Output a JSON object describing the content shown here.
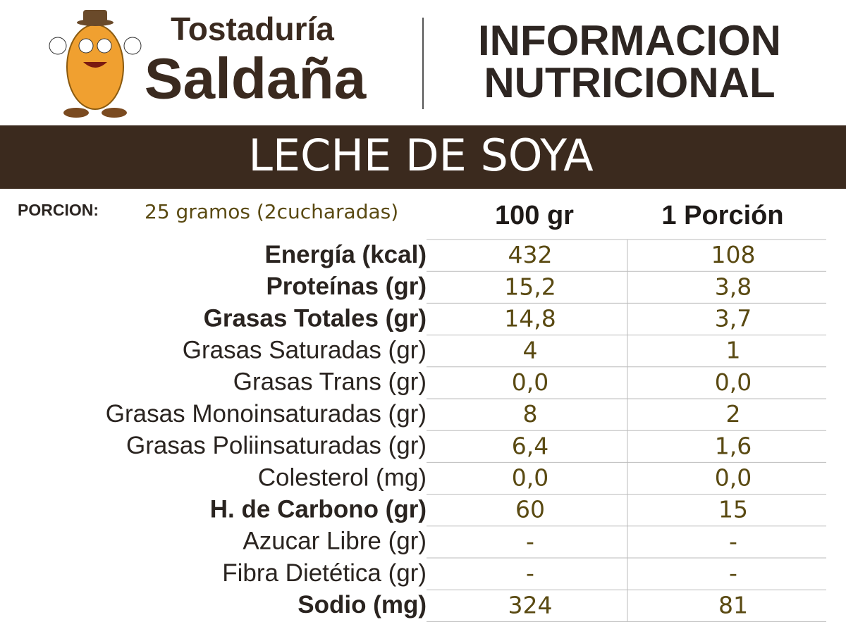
{
  "brand": {
    "line1": "Tostaduría",
    "line2": "Saldaña"
  },
  "header": {
    "title_line1": "INFORMACION",
    "title_line2": "NUTRICIONAL"
  },
  "product": "LECHE DE SOYA",
  "portion": {
    "label": "PORCION:",
    "value": "25 gramos (2cucharadas)"
  },
  "table": {
    "columns": [
      "100 gr",
      "1 Porción"
    ],
    "rows": [
      {
        "label": "Energía (kcal)",
        "per100": "432",
        "perPortion": "108",
        "bold": true
      },
      {
        "label": "Proteínas (gr)",
        "per100": "15,2",
        "perPortion": "3,8",
        "bold": true
      },
      {
        "label": "Grasas Totales (gr)",
        "per100": "14,8",
        "perPortion": "3,7",
        "bold": true
      },
      {
        "label": "Grasas Saturadas (gr)",
        "per100": "4",
        "perPortion": "1",
        "bold": false
      },
      {
        "label": "Grasas Trans (gr)",
        "per100": "0,0",
        "perPortion": "0,0",
        "bold": false
      },
      {
        "label": "Grasas Monoinsaturadas (gr)",
        "per100": "8",
        "perPortion": "2",
        "bold": false
      },
      {
        "label": "Grasas Poliinsaturadas (gr)",
        "per100": "6,4",
        "perPortion": "1,6",
        "bold": false
      },
      {
        "label": "Colesterol (mg)",
        "per100": "0,0",
        "perPortion": "0,0",
        "bold": false
      },
      {
        "label": "H. de Carbono (gr)",
        "per100": "60",
        "perPortion": "15",
        "bold": true
      },
      {
        "label": "Azucar Libre (gr)",
        "per100": "-",
        "perPortion": "-",
        "bold": false
      },
      {
        "label": "Fibra Dietética (gr)",
        "per100": "-",
        "perPortion": "-",
        "bold": false
      },
      {
        "label": "Sodio (mg)",
        "per100": "324",
        "perPortion": "81",
        "bold": true
      }
    ]
  }
}
